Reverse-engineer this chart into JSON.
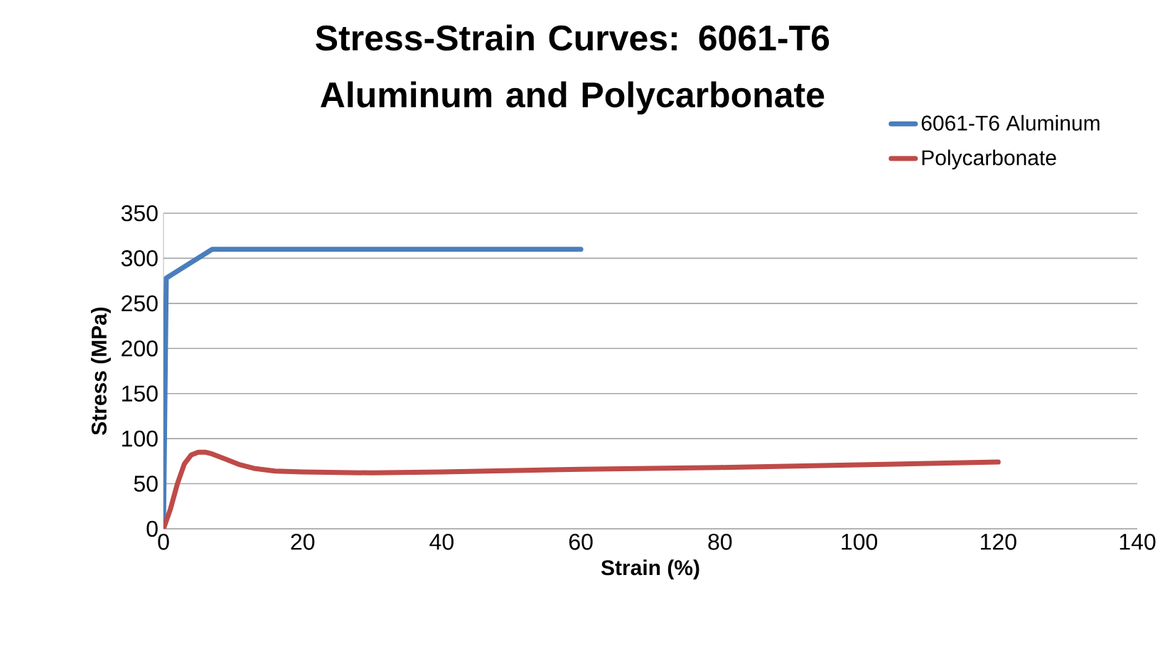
{
  "chart_data": {
    "type": "line",
    "title": "Stress-Strain Curves: 6061-T6 Aluminum and Polycarbonate",
    "xlabel": "Strain (%)",
    "ylabel": "Stress (MPa)",
    "xlim": [
      0,
      140
    ],
    "xticks": [
      0,
      20,
      40,
      60,
      80,
      100,
      120,
      140
    ],
    "ylim": [
      0,
      350
    ],
    "yticks": [
      0,
      50,
      100,
      150,
      200,
      250,
      300,
      350
    ],
    "grid": "y",
    "legend": "top right",
    "line_style": "solid",
    "marker": "none",
    "series": [
      {
        "name": "6061-T6 Aluminum",
        "color": "#4a7ebb",
        "x": [
          0,
          0.4,
          7,
          30,
          60
        ],
        "values": [
          0,
          278,
          310,
          310,
          310
        ]
      },
      {
        "name": "Polycarbonate",
        "color": "#be4b48",
        "x": [
          0,
          1,
          2,
          3,
          4,
          5,
          6,
          7,
          9,
          11,
          13,
          16,
          20,
          30,
          40,
          60,
          80,
          100,
          120
        ],
        "values": [
          0,
          22,
          50,
          72,
          82,
          85,
          85,
          83,
          77,
          71,
          67,
          64,
          63,
          62,
          63,
          66,
          68,
          71,
          74
        ]
      }
    ]
  }
}
